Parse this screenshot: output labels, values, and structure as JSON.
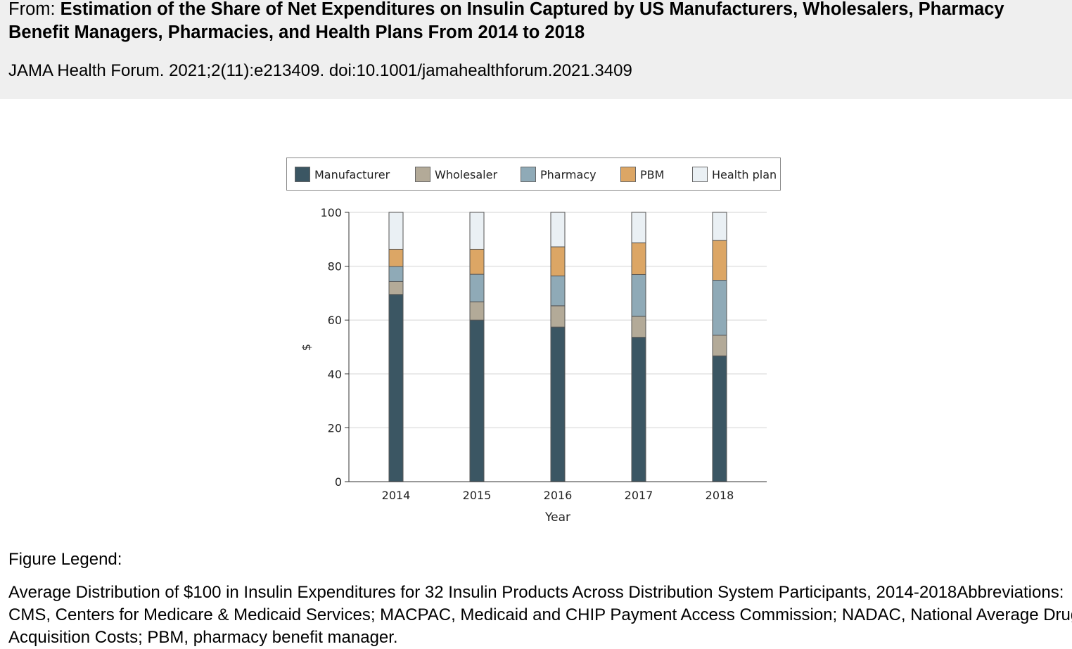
{
  "header": {
    "from_label": "From:",
    "title": "Estimation of the Share of Net Expenditures on Insulin Captured by US Manufacturers, Wholesalers, Pharmacy Benefit Managers, Pharmacies, and Health Plans From 2014 to 2018",
    "citation": "JAMA Health Forum. 2021;2(11):e213409. doi:10.1001/jamahealthforum.2021.3409"
  },
  "chart_data": {
    "type": "bar",
    "stacked": true,
    "categories": [
      "2014",
      "2015",
      "2016",
      "2017",
      "2018"
    ],
    "xlabel": "Year",
    "ylabel": "$",
    "ylim": [
      0,
      100
    ],
    "yticks": [
      0,
      20,
      40,
      60,
      80,
      100
    ],
    "grid": true,
    "legend_position": "top",
    "series": [
      {
        "name": "Manufacturer",
        "color": "#3b5663",
        "values": [
          69.5,
          60.0,
          57.4,
          53.6,
          46.7
        ]
      },
      {
        "name": "Wholesaler",
        "color": "#b3aa98",
        "values": [
          4.8,
          6.8,
          7.9,
          7.8,
          7.7
        ]
      },
      {
        "name": "Pharmacy",
        "color": "#8faab7",
        "values": [
          5.6,
          10.2,
          11.1,
          15.5,
          20.4
        ]
      },
      {
        "name": "PBM",
        "color": "#dca665",
        "values": [
          6.4,
          9.3,
          10.8,
          11.8,
          14.8
        ]
      },
      {
        "name": "Health plan",
        "color": "#eaf0f4",
        "values": [
          13.7,
          13.7,
          12.8,
          11.3,
          10.4
        ]
      }
    ]
  },
  "figure_legend": {
    "heading": "Figure Legend:",
    "text": "Average Distribution of $100 in Insulin Expenditures for 32 Insulin Products Across Distribution System Participants, 2014-2018Abbreviations: CMS, Centers for Medicare & Medicaid Services; MACPAC, Medicaid and CHIP Payment Access Commission; NADAC, National Average Drug Acquisition Costs; PBM, pharmacy benefit manager."
  }
}
